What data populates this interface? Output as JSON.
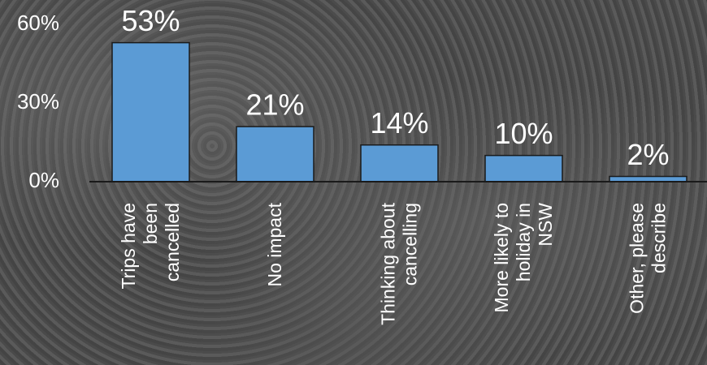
{
  "chart_data": {
    "type": "bar",
    "categories": [
      "Trips have\nbeen\ncancelled",
      "No impact",
      "Thinking about\ncancelling",
      "More likely to\nholiday in\nNSW",
      "Other, please\ndescribe"
    ],
    "values": [
      53,
      21,
      14,
      10,
      2
    ],
    "value_labels": [
      "53%",
      "21%",
      "14%",
      "10%",
      "2%"
    ],
    "color": "#5b9bd5",
    "ylim": [
      0,
      60
    ],
    "yticks": [
      {
        "value": 0,
        "label": "0%"
      },
      {
        "value": 30,
        "label": "30%"
      },
      {
        "value": 60,
        "label": "60%"
      }
    ]
  }
}
